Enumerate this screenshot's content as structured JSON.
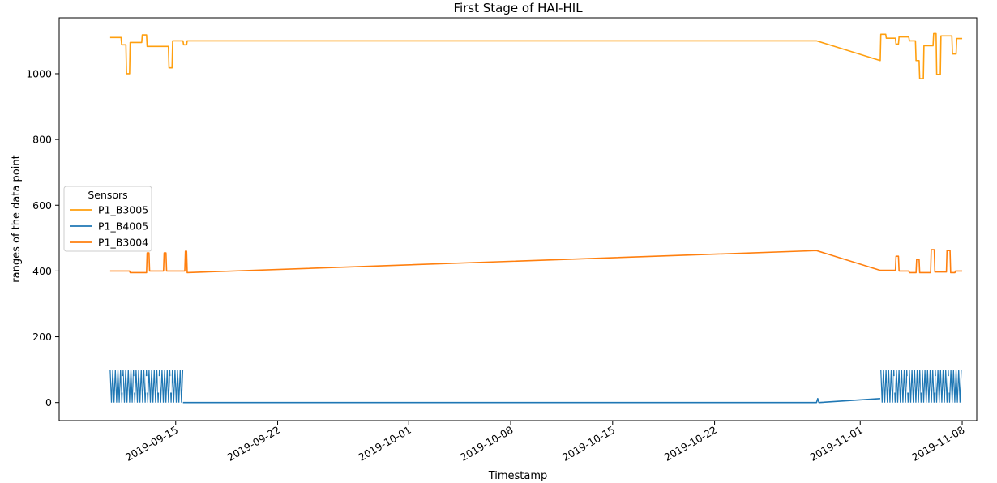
{
  "chart_data": {
    "type": "line",
    "title": "First Stage of HAI-HIL",
    "xlabel": "Timestamp",
    "ylabel": "ranges of the data point",
    "x_type": "date",
    "xlim": [
      "2019-09-07",
      "2019-11-09"
    ],
    "ylim": [
      -55,
      1170
    ],
    "x_ticks": [
      "2019-09-15",
      "2019-09-22",
      "2019-10-01",
      "2019-10-08",
      "2019-10-15",
      "2019-10-22",
      "2019-11-01",
      "2019-11-08"
    ],
    "y_ticks": [
      0,
      200,
      400,
      600,
      800,
      1000
    ],
    "grid": false,
    "legend": {
      "title": "Sensors",
      "position": "center-left"
    },
    "series": [
      {
        "name": "P1_B3005",
        "color": "#ff9f0e",
        "style": "step",
        "points": [
          [
            "2019-09-10T12:00",
            1110
          ],
          [
            "2019-09-11T06:00",
            1110
          ],
          [
            "2019-09-11T07:00",
            1088
          ],
          [
            "2019-09-11T14:00",
            1088
          ],
          [
            "2019-09-11T15:00",
            1000
          ],
          [
            "2019-09-11T20:00",
            1000
          ],
          [
            "2019-09-11T21:00",
            1095
          ],
          [
            "2019-09-12T16:00",
            1095
          ],
          [
            "2019-09-12T17:00",
            1118
          ],
          [
            "2019-09-13T00:00",
            1118
          ],
          [
            "2019-09-13T01:00",
            1083
          ],
          [
            "2019-09-14T12:00",
            1083
          ],
          [
            "2019-09-14T13:00",
            1018
          ],
          [
            "2019-09-14T18:00",
            1018
          ],
          [
            "2019-09-14T19:00",
            1100
          ],
          [
            "2019-09-15T12:00",
            1100
          ],
          [
            "2019-09-15T13:00",
            1088
          ],
          [
            "2019-09-15T18:00",
            1088
          ],
          [
            "2019-09-15T19:00",
            1100
          ],
          [
            "2019-10-29T00:00",
            1100
          ],
          [
            "2019-11-02T09:00",
            1040
          ],
          [
            "2019-11-02T10:00",
            1120
          ],
          [
            "2019-11-02T18:00",
            1120
          ],
          [
            "2019-11-02T19:00",
            1108
          ],
          [
            "2019-11-03T10:00",
            1108
          ],
          [
            "2019-11-03T11:00",
            1090
          ],
          [
            "2019-11-03T15:00",
            1090
          ],
          [
            "2019-11-03T16:00",
            1112
          ],
          [
            "2019-11-04T08:00",
            1112
          ],
          [
            "2019-11-04T09:00",
            1100
          ],
          [
            "2019-11-04T19:00",
            1100
          ],
          [
            "2019-11-04T20:00",
            1040
          ],
          [
            "2019-11-05T01:00",
            1040
          ],
          [
            "2019-11-05T02:00",
            985
          ],
          [
            "2019-11-05T08:00",
            985
          ],
          [
            "2019-11-05T09:00",
            1085
          ],
          [
            "2019-11-06T00:00",
            1085
          ],
          [
            "2019-11-06T01:00",
            1122
          ],
          [
            "2019-11-06T05:00",
            1122
          ],
          [
            "2019-11-06T06:00",
            998
          ],
          [
            "2019-11-06T12:00",
            998
          ],
          [
            "2019-11-06T13:00",
            1115
          ],
          [
            "2019-11-07T07:00",
            1115
          ],
          [
            "2019-11-07T08:00",
            1060
          ],
          [
            "2019-11-07T14:00",
            1060
          ],
          [
            "2019-11-07T15:00",
            1107
          ],
          [
            "2019-11-08T00:00",
            1107
          ]
        ]
      },
      {
        "name": "P1_B4005",
        "color": "#1f77b4",
        "style": "dense",
        "points": [
          [
            "2019-09-15T12:00",
            0
          ],
          [
            "2019-10-29T00:00",
            0
          ],
          [
            "2019-10-29T02:00",
            12
          ],
          [
            "2019-10-29T04:00",
            0
          ],
          [
            "2019-11-02T09:00",
            12
          ]
        ],
        "bands": [
          {
            "start": "2019-09-10T12:00",
            "end": "2019-09-15T12:00",
            "min": 0,
            "max": 100
          },
          {
            "start": "2019-11-02T10:00",
            "end": "2019-11-08T00:00",
            "min": 0,
            "max": 100
          }
        ]
      },
      {
        "name": "P1_B3004",
        "color": "#ff7f0e",
        "style": "step",
        "points": [
          [
            "2019-09-10T12:00",
            400
          ],
          [
            "2019-09-11T20:00",
            400
          ],
          [
            "2019-09-11T21:00",
            395
          ],
          [
            "2019-09-13T00:00",
            395
          ],
          [
            "2019-09-13T01:00",
            455
          ],
          [
            "2019-09-13T04:00",
            455
          ],
          [
            "2019-09-13T05:00",
            400
          ],
          [
            "2019-09-14T04:00",
            400
          ],
          [
            "2019-09-14T05:00",
            455
          ],
          [
            "2019-09-14T08:00",
            455
          ],
          [
            "2019-09-14T09:00",
            400
          ],
          [
            "2019-09-15T15:00",
            400
          ],
          [
            "2019-09-15T16:00",
            460
          ],
          [
            "2019-09-15T18:00",
            460
          ],
          [
            "2019-09-15T19:00",
            395
          ],
          [
            "2019-10-29T00:00",
            462
          ],
          [
            "2019-11-02T09:00",
            402
          ],
          [
            "2019-11-03T10:00",
            402
          ],
          [
            "2019-11-03T11:00",
            445
          ],
          [
            "2019-11-03T15:00",
            445
          ],
          [
            "2019-11-03T16:00",
            400
          ],
          [
            "2019-11-04T08:00",
            400
          ],
          [
            "2019-11-04T09:00",
            395
          ],
          [
            "2019-11-04T20:00",
            395
          ],
          [
            "2019-11-04T21:00",
            435
          ],
          [
            "2019-11-05T01:00",
            435
          ],
          [
            "2019-11-05T02:00",
            395
          ],
          [
            "2019-11-05T20:00",
            395
          ],
          [
            "2019-11-05T21:00",
            465
          ],
          [
            "2019-11-06T02:00",
            465
          ],
          [
            "2019-11-06T03:00",
            397
          ],
          [
            "2019-11-06T22:00",
            397
          ],
          [
            "2019-11-06T23:00",
            462
          ],
          [
            "2019-11-07T04:00",
            462
          ],
          [
            "2019-11-07T05:00",
            395
          ],
          [
            "2019-11-07T12:00",
            395
          ],
          [
            "2019-11-07T13:00",
            400
          ],
          [
            "2019-11-08T00:00",
            400
          ]
        ]
      }
    ]
  }
}
